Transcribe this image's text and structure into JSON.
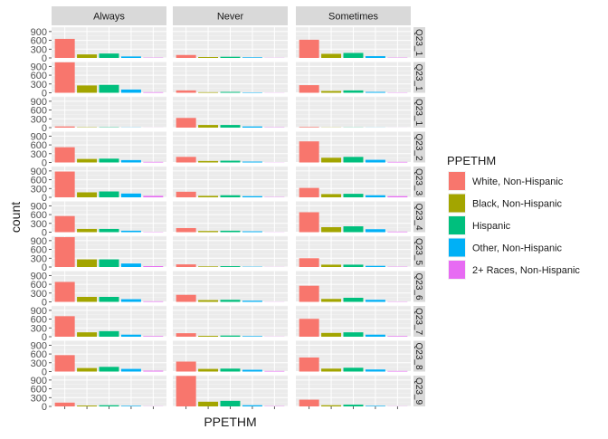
{
  "chart_data": {
    "type": "bar",
    "xlabel": "PPETHM",
    "ylabel": "count",
    "ylim": [
      0,
      1050
    ],
    "yticks": [
      0,
      300,
      600,
      900
    ],
    "yticklabels": [
      "0",
      "300",
      "600",
      "900"
    ],
    "grid": true,
    "legend": {
      "title": "PPETHM",
      "placement": "right"
    },
    "categories": [
      "White, Non-Hispanic",
      "Black, Non-Hispanic",
      "Hispanic",
      "Other, Non-Hispanic",
      "2+ Races, Non-Hispanic"
    ],
    "colors": [
      "#F8766D",
      "#A3A500",
      "#00BF7D",
      "#00B0F6",
      "#E76BF3"
    ],
    "column_facets": [
      "Always",
      "Never",
      "Sometimes"
    ],
    "row_facets": [
      {
        "label": "Q23_1",
        "shown": "Q23_1",
        "values": [
          [
            650,
            120,
            150,
            50,
            10
          ],
          [
            100,
            30,
            40,
            20,
            5
          ],
          [
            620,
            140,
            170,
            60,
            10
          ]
        ]
      },
      {
        "label": "Q23_1",
        "shown": "Q23_1",
        "values": [
          [
            1040,
            250,
            270,
            110,
            20
          ],
          [
            80,
            20,
            30,
            15,
            5
          ],
          [
            260,
            60,
            80,
            30,
            10
          ]
        ]
      },
      {
        "label": "Q23_1",
        "shown": "Q23_1",
        "values": [
          [
            40,
            10,
            10,
            5,
            2
          ],
          [
            330,
            90,
            90,
            40,
            10
          ],
          [
            20,
            5,
            5,
            3,
            1
          ]
        ]
      },
      {
        "label": "Q23_2",
        "shown": "Q23_2",
        "values": [
          [
            520,
            120,
            130,
            80,
            20
          ],
          [
            190,
            50,
            60,
            30,
            5
          ],
          [
            720,
            160,
            190,
            90,
            20
          ]
        ]
      },
      {
        "label": "Q23_3",
        "shown": "Q23_3",
        "values": [
          [
            880,
            170,
            200,
            130,
            50
          ],
          [
            190,
            50,
            70,
            40,
            10
          ],
          [
            320,
            110,
            120,
            70,
            40
          ]
        ]
      },
      {
        "label": "Q23_4",
        "shown": "Q23_4",
        "values": [
          [
            550,
            110,
            110,
            50,
            10
          ],
          [
            140,
            40,
            50,
            30,
            5
          ],
          [
            680,
            170,
            200,
            100,
            20
          ]
        ]
      },
      {
        "label": "Q23_5",
        "shown": "Q23_5",
        "values": [
          [
            1020,
            260,
            260,
            120,
            30
          ],
          [
            90,
            20,
            30,
            10,
            3
          ],
          [
            300,
            80,
            80,
            40,
            10
          ]
        ]
      },
      {
        "label": "Q23_6",
        "shown": "Q23_6",
        "values": [
          [
            680,
            170,
            170,
            90,
            20
          ],
          [
            240,
            60,
            70,
            40,
            5
          ],
          [
            550,
            100,
            140,
            70,
            10
          ]
        ]
      },
      {
        "label": "Q23_7",
        "shown": "Q23_7",
        "values": [
          [
            700,
            150,
            190,
            70,
            20
          ],
          [
            120,
            30,
            40,
            20,
            5
          ],
          [
            610,
            130,
            150,
            70,
            20
          ]
        ]
      },
      {
        "label": "Q23_8",
        "shown": "Q23_8",
        "values": [
          [
            560,
            120,
            160,
            90,
            30
          ],
          [
            340,
            90,
            100,
            60,
            20
          ],
          [
            480,
            100,
            130,
            70,
            20
          ]
        ]
      },
      {
        "label": "Q23_9",
        "shown": "Q23_9",
        "values": [
          [
            130,
            30,
            40,
            20,
            5
          ],
          [
            1040,
            160,
            190,
            40,
            10
          ],
          [
            230,
            40,
            60,
            20,
            5
          ]
        ]
      }
    ]
  }
}
